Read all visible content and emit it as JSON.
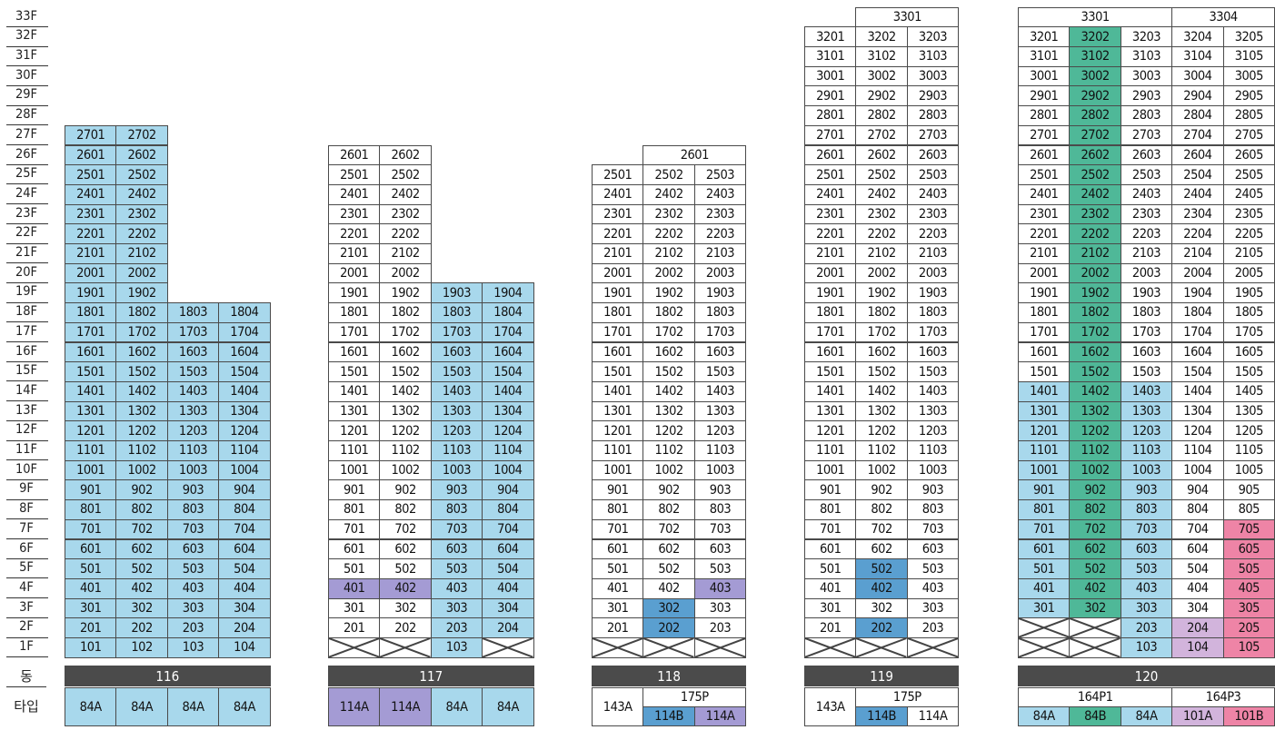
{
  "floor_labels": [
    "33F",
    "32F",
    "31F",
    "30F",
    "29F",
    "28F",
    "27F",
    "26F",
    "25F",
    "24F",
    "23F",
    "22F",
    "21F",
    "20F",
    "19F",
    "18F",
    "17F",
    "16F",
    "15F",
    "14F",
    "13F",
    "12F",
    "11F",
    "10F",
    "9F",
    "8F",
    "7F",
    "6F",
    "5F",
    "4F",
    "3F",
    "2F",
    "1F"
  ],
  "row_labels": {
    "dong": "동",
    "type": "타입"
  },
  "colors": {
    "84A": "#a8d8ec",
    "114A": "#a49bd4",
    "114B": "#5a9fd0",
    "84B": "#4fb898",
    "101A": "#d2b4dc",
    "101B": "#ee84a6",
    "dong_bar": "#4b4b4b"
  },
  "buildings": [
    {
      "dong": "116",
      "columns": [
        {
          "top": 27,
          "color": "blue"
        },
        {
          "top": 27,
          "color": "blue"
        },
        {
          "top": 18,
          "color": "blue"
        },
        {
          "top": 18,
          "color": "blue"
        }
      ],
      "overrides": [],
      "x_cells": [],
      "merged_top": [],
      "types": [
        {
          "label": "84A",
          "cols": [
            1,
            1
          ],
          "color": "blue"
        },
        {
          "label": "84A",
          "cols": [
            2,
            2
          ],
          "color": "blue"
        },
        {
          "label": "84A",
          "cols": [
            3,
            3
          ],
          "color": "blue"
        },
        {
          "label": "84A",
          "cols": [
            4,
            4
          ],
          "color": "blue"
        }
      ],
      "groups": []
    },
    {
      "dong": "117",
      "columns": [
        {
          "top": 26,
          "color": "white"
        },
        {
          "top": 26,
          "color": "white"
        },
        {
          "top": 19,
          "color": "blue"
        },
        {
          "top": 19,
          "color": "blue"
        }
      ],
      "overrides": [
        {
          "col": 1,
          "floor": 4,
          "color": "purple"
        },
        {
          "col": 2,
          "floor": 4,
          "color": "purple"
        }
      ],
      "x_cells": [
        {
          "col": 1,
          "floor": 1
        },
        {
          "col": 2,
          "floor": 1
        },
        {
          "col": 4,
          "floor": 1
        }
      ],
      "merged_top": [],
      "types": [
        {
          "label": "114A",
          "cols": [
            1,
            1
          ],
          "color": "purple"
        },
        {
          "label": "114A",
          "cols": [
            2,
            2
          ],
          "color": "purple"
        },
        {
          "label": "84A",
          "cols": [
            3,
            3
          ],
          "color": "blue"
        },
        {
          "label": "84A",
          "cols": [
            4,
            4
          ],
          "color": "blue"
        }
      ],
      "groups": []
    },
    {
      "dong": "118",
      "columns": [
        {
          "top": 25,
          "color": "white"
        },
        {
          "top": 25,
          "color": "white"
        },
        {
          "top": 25,
          "color": "white"
        }
      ],
      "overrides": [
        {
          "col": 2,
          "floor": 2,
          "color": "dblue"
        },
        {
          "col": 2,
          "floor": 3,
          "color": "dblue"
        },
        {
          "col": 3,
          "floor": 4,
          "color": "purple"
        }
      ],
      "x_cells": [
        {
          "col": 1,
          "floor": 1
        },
        {
          "col": 2,
          "floor": 1
        },
        {
          "col": 3,
          "floor": 1
        }
      ],
      "merged_top": [
        {
          "label": "2601",
          "cols": [
            2,
            3
          ],
          "floor": 26
        }
      ],
      "types": [
        {
          "label": "143A",
          "cols": [
            1,
            1
          ],
          "color": "white",
          "span2": true
        },
        {
          "label": "114B",
          "cols": [
            2,
            2
          ],
          "color": "dblue"
        },
        {
          "label": "114A",
          "cols": [
            3,
            3
          ],
          "color": "purple"
        }
      ],
      "groups": [
        {
          "label": "175P",
          "cols": [
            2,
            3
          ]
        }
      ]
    },
    {
      "dong": "119",
      "columns": [
        {
          "top": 32,
          "color": "white"
        },
        {
          "top": 32,
          "color": "white"
        },
        {
          "top": 32,
          "color": "white"
        }
      ],
      "overrides": [
        {
          "col": 2,
          "floor": 2,
          "color": "dblue"
        },
        {
          "col": 2,
          "floor": 4,
          "color": "dblue"
        },
        {
          "col": 2,
          "floor": 5,
          "color": "dblue"
        }
      ],
      "x_cells": [
        {
          "col": 1,
          "floor": 1
        },
        {
          "col": 2,
          "floor": 1
        },
        {
          "col": 3,
          "floor": 1
        }
      ],
      "merged_top": [
        {
          "label": "3301",
          "cols": [
            2,
            3
          ],
          "floor": 33
        }
      ],
      "types": [
        {
          "label": "143A",
          "cols": [
            1,
            1
          ],
          "color": "white",
          "span2": true
        },
        {
          "label": "114B",
          "cols": [
            2,
            2
          ],
          "color": "dblue"
        },
        {
          "label": "114A",
          "cols": [
            3,
            3
          ],
          "color": "white"
        }
      ],
      "groups": [
        {
          "label": "175P",
          "cols": [
            2,
            3
          ]
        }
      ]
    },
    {
      "dong": "120",
      "columns": [
        {
          "top": 32,
          "color": "white",
          "blue_to": 14
        },
        {
          "top": 32,
          "color": "teal"
        },
        {
          "top": 32,
          "color": "white",
          "blue_to": 14
        },
        {
          "top": 32,
          "color": "white"
        },
        {
          "top": 32,
          "color": "white"
        }
      ],
      "overrides": [
        {
          "col": 4,
          "floor": 1,
          "color": "lpurple"
        },
        {
          "col": 4,
          "floor": 2,
          "color": "lpurple"
        },
        {
          "col": 5,
          "floor": 1,
          "color": "pink"
        },
        {
          "col": 5,
          "floor": 2,
          "color": "pink"
        },
        {
          "col": 5,
          "floor": 3,
          "color": "pink"
        },
        {
          "col": 5,
          "floor": 4,
          "color": "pink"
        },
        {
          "col": 5,
          "floor": 5,
          "color": "pink"
        },
        {
          "col": 5,
          "floor": 6,
          "color": "pink"
        },
        {
          "col": 5,
          "floor": 7,
          "color": "pink"
        }
      ],
      "x_cells": [
        {
          "col": 1,
          "floor": 1
        },
        {
          "col": 2,
          "floor": 1
        },
        {
          "col": 1,
          "floor": 2
        },
        {
          "col": 2,
          "floor": 2
        }
      ],
      "merged_top": [
        {
          "label": "3301",
          "cols": [
            1,
            3
          ],
          "floor": 33
        },
        {
          "label": "3304",
          "cols": [
            4,
            5
          ],
          "floor": 33
        }
      ],
      "types": [
        {
          "label": "84A",
          "cols": [
            1,
            1
          ],
          "color": "blue"
        },
        {
          "label": "84B",
          "cols": [
            2,
            2
          ],
          "color": "teal"
        },
        {
          "label": "84A",
          "cols": [
            3,
            3
          ],
          "color": "blue"
        },
        {
          "label": "101A",
          "cols": [
            4,
            4
          ],
          "color": "lpurple"
        },
        {
          "label": "101B",
          "cols": [
            5,
            5
          ],
          "color": "pink"
        }
      ],
      "groups": [
        {
          "label": "164P1",
          "cols": [
            1,
            3
          ]
        },
        {
          "label": "164P3",
          "cols": [
            4,
            5
          ]
        }
      ]
    }
  ]
}
